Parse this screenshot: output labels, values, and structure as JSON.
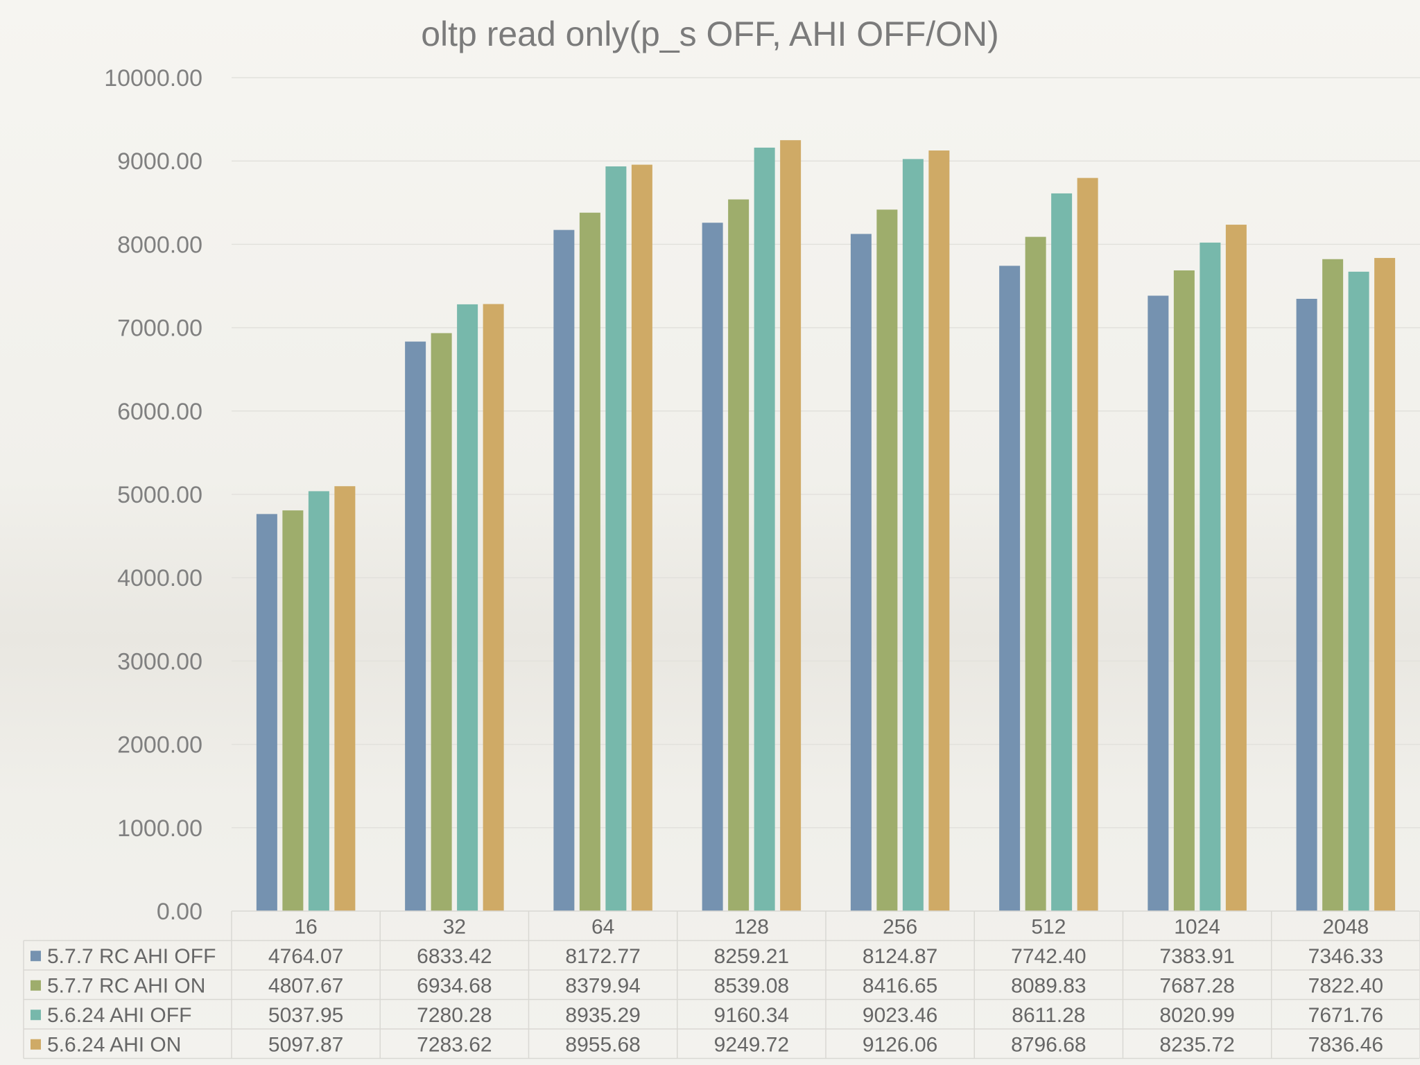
{
  "chart_data": {
    "type": "bar",
    "title": "oltp read only(p_s OFF, AHI OFF/ON)",
    "xlabel": "",
    "ylabel": "",
    "ylim": [
      0,
      10000
    ],
    "yticks": [
      "0.00",
      "1000.00",
      "2000.00",
      "3000.00",
      "4000.00",
      "5000.00",
      "6000.00",
      "7000.00",
      "8000.00",
      "9000.00",
      "10000.00"
    ],
    "grid": true,
    "legend": "data-table-left",
    "categories": [
      "16",
      "32",
      "64",
      "128",
      "256",
      "512",
      "1024",
      "2048"
    ],
    "series": [
      {
        "name": "5.7.7 RC AHI OFF",
        "color": "#7592b0",
        "values": [
          4764.07,
          6833.42,
          8172.77,
          8259.21,
          8124.87,
          7742.4,
          7383.91,
          7346.33
        ],
        "labels": [
          "4764.07",
          "6833.42",
          "8172.77",
          "8259.21",
          "8124.87",
          "7742.40",
          "7383.91",
          "7346.33"
        ]
      },
      {
        "name": "5.7.7 RC AHI ON",
        "color": "#9ead6c",
        "values": [
          4807.67,
          6934.68,
          8379.94,
          8539.08,
          8416.65,
          8089.83,
          7687.28,
          7822.4
        ],
        "labels": [
          "4807.67",
          "6934.68",
          "8379.94",
          "8539.08",
          "8416.65",
          "8089.83",
          "7687.28",
          "7822.40"
        ]
      },
      {
        "name": "5.6.24 AHI OFF",
        "color": "#77b8ab",
        "values": [
          5037.95,
          7280.28,
          8935.29,
          9160.34,
          9023.46,
          8611.28,
          8020.99,
          7671.76
        ],
        "labels": [
          "5037.95",
          "7280.28",
          "8935.29",
          "9160.34",
          "9023.46",
          "8611.28",
          "8020.99",
          "7671.76"
        ]
      },
      {
        "name": "5.6.24 AHI ON",
        "color": "#cfaa66",
        "values": [
          5097.87,
          7283.62,
          8955.68,
          9249.72,
          9126.06,
          8796.68,
          8235.72,
          7836.46
        ],
        "labels": [
          "5097.87",
          "7283.62",
          "8955.68",
          "9249.72",
          "9126.06",
          "8796.68",
          "8235.72",
          "7836.46"
        ]
      }
    ]
  }
}
